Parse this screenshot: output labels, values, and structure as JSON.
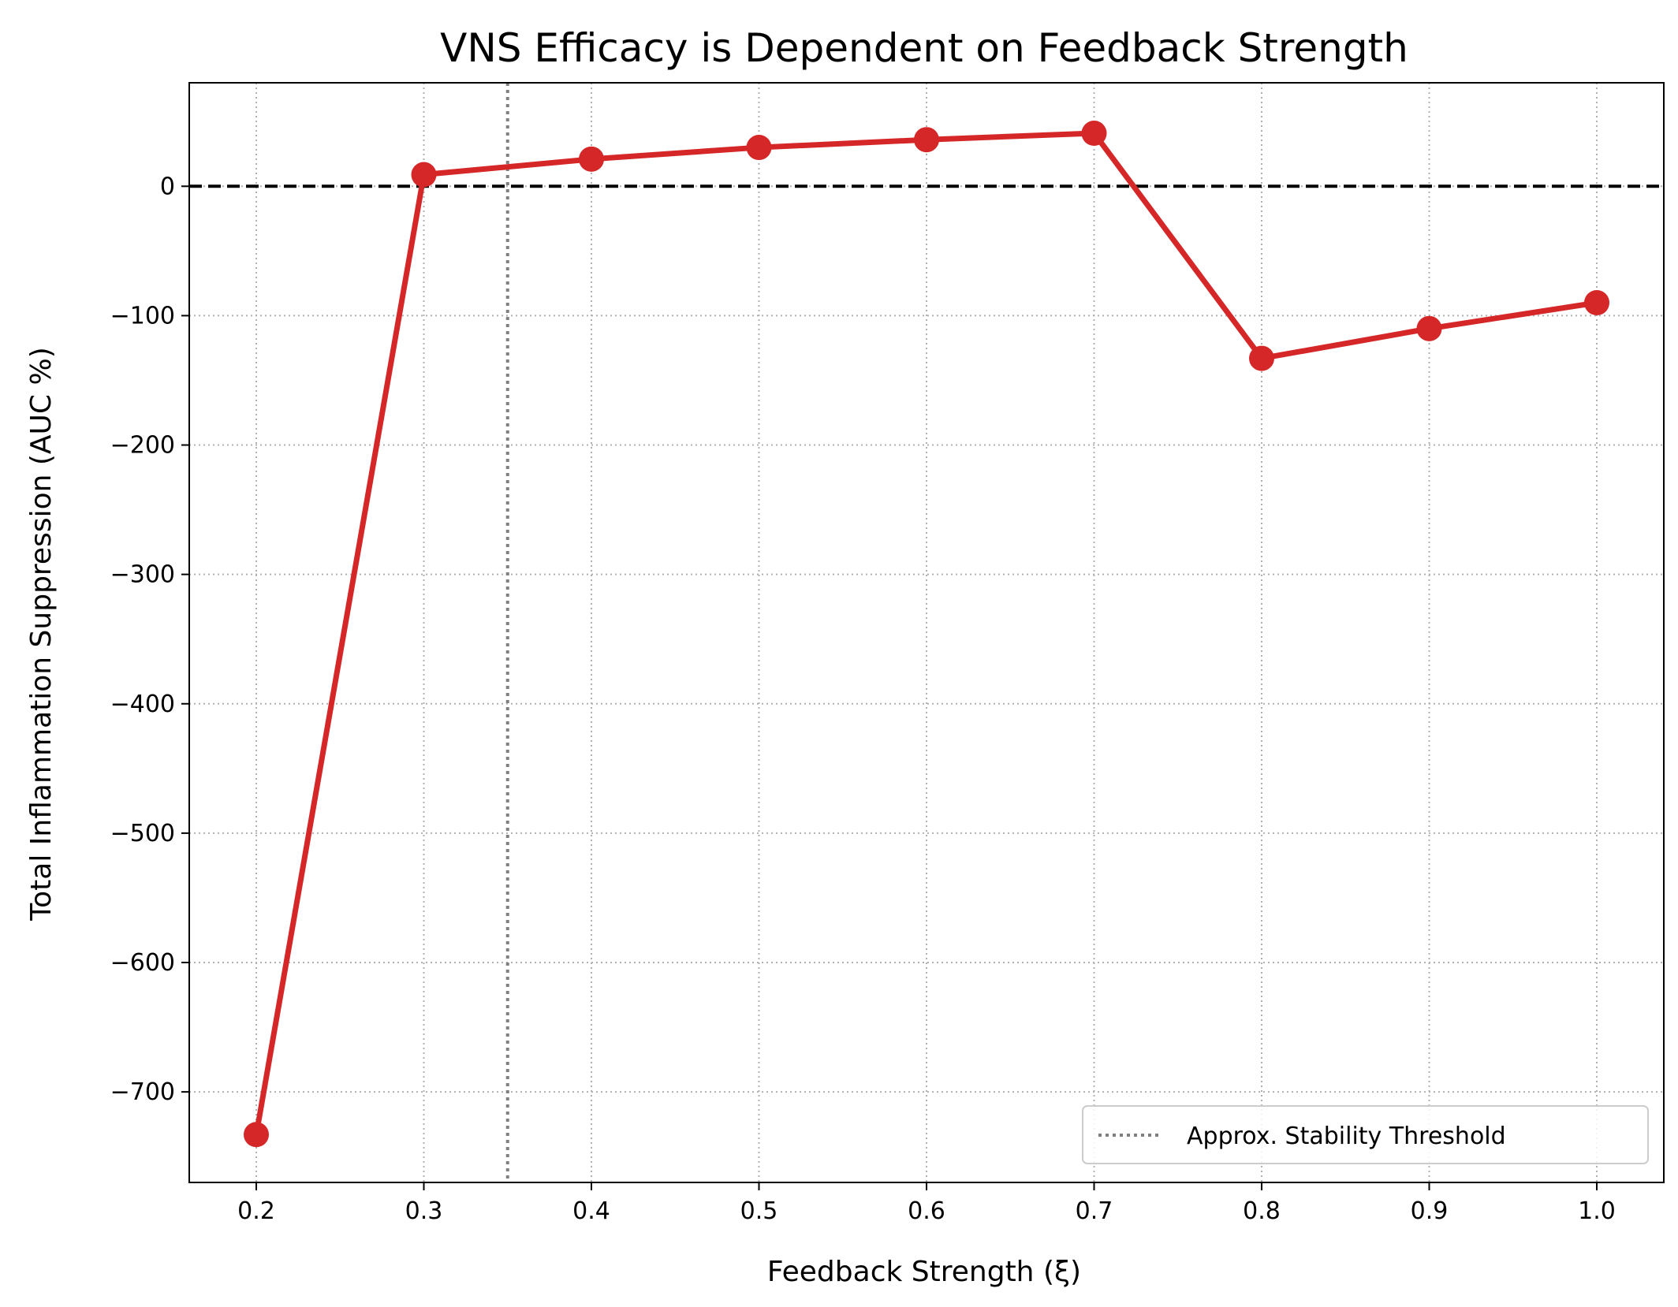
{
  "chart_data": {
    "type": "line",
    "title": "VNS Efficacy is Dependent on Feedback Strength",
    "xlabel": "Feedback Strength (ξ)",
    "ylabel": "Total Inflammation Suppression (AUC %)",
    "xlim": [
      0.16,
      1.04
    ],
    "ylim": [
      -770,
      80
    ],
    "x_ticks": [
      0.2,
      0.3,
      0.4,
      0.5,
      0.6,
      0.7,
      0.8,
      0.9,
      1.0
    ],
    "x_tick_labels": [
      "0.2",
      "0.3",
      "0.4",
      "0.5",
      "0.6",
      "0.7",
      "0.8",
      "0.9",
      "1.0"
    ],
    "y_ticks": [
      0,
      -100,
      -200,
      -300,
      -400,
      -500,
      -600,
      -700
    ],
    "y_tick_labels": [
      "0",
      "−100",
      "−200",
      "−300",
      "−400",
      "−500",
      "−600",
      "−700"
    ],
    "grid": true,
    "series": [
      {
        "color": "#d62728",
        "x": [
          0.2,
          0.3,
          0.4,
          0.5,
          0.6,
          0.7,
          0.8,
          0.9,
          1.0
        ],
        "y": [
          -733,
          9,
          21,
          30,
          36,
          41,
          -133,
          -110,
          -90
        ]
      }
    ],
    "reference_lines": {
      "horizontal": {
        "y": 0,
        "style": "dashed",
        "color": "#000000"
      },
      "vertical": {
        "x": 0.35,
        "style": "dotted",
        "color": "#808080",
        "name": "Approx. Stability Threshold"
      }
    },
    "legend": {
      "placement": "bottom-right",
      "entries": [
        "Approx. Stability Threshold"
      ]
    }
  }
}
